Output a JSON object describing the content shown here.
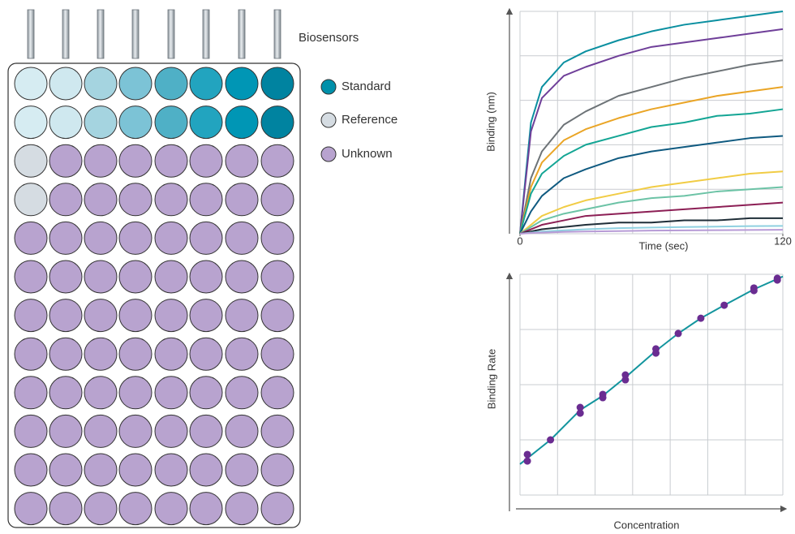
{
  "biosensors_label": "Biosensors",
  "legend": [
    "Standard",
    "Reference",
    "Unknown"
  ],
  "chart_data": [
    {
      "type": "line",
      "y_label": "Binding (nm)",
      "x_label": "Time (sec)",
      "x": [
        0,
        5,
        10,
        20,
        30,
        45,
        60,
        75,
        90,
        105,
        120
      ],
      "xlim": [
        0,
        120
      ],
      "xticks": [
        0,
        120
      ],
      "ylim": [
        0,
        100
      ],
      "grid": true,
      "series": [
        {
          "color": "#0a8fa0",
          "values": [
            0,
            50,
            66,
            77,
            82,
            87,
            91,
            94,
            96,
            98,
            100
          ]
        },
        {
          "color": "#6f3f99",
          "values": [
            0,
            46,
            61,
            71,
            75,
            80,
            84,
            86,
            88,
            90,
            92
          ]
        },
        {
          "color": "#6d7377",
          "values": [
            0,
            25,
            37,
            49,
            55,
            62,
            66,
            70,
            73,
            76,
            78
          ]
        },
        {
          "color": "#eaa526",
          "values": [
            0,
            21,
            32,
            42,
            47,
            52,
            56,
            59,
            62,
            64,
            66
          ]
        },
        {
          "color": "#13a594",
          "values": [
            0,
            18,
            27,
            35,
            40,
            44,
            48,
            50,
            53,
            54,
            56
          ]
        },
        {
          "color": "#0f5a80",
          "values": [
            0,
            10,
            17,
            25,
            29,
            34,
            37,
            39,
            41,
            43,
            44
          ]
        },
        {
          "color": "#f1cc45",
          "values": [
            0,
            4,
            8,
            12,
            15,
            18,
            21,
            23,
            25,
            27,
            28
          ]
        },
        {
          "color": "#6cc3a6",
          "values": [
            0,
            3,
            6,
            9,
            11,
            14,
            16,
            17,
            19,
            20,
            21
          ]
        },
        {
          "color": "#8c1f55",
          "values": [
            0,
            2,
            4,
            6,
            8,
            9,
            10,
            11,
            12,
            13,
            14
          ]
        },
        {
          "color": "#1f2e38",
          "values": [
            0,
            1,
            2,
            3,
            4,
            5,
            5,
            6,
            6,
            7,
            7
          ]
        },
        {
          "color": "#8fd0e0",
          "values": [
            0,
            0.5,
            1,
            1.5,
            2,
            2.5,
            2.8,
            3,
            3.2,
            3.4,
            3.5
          ]
        },
        {
          "color": "#b79bd6",
          "values": [
            0,
            0.3,
            0.5,
            0.8,
            1,
            1.2,
            1.4,
            1.5,
            1.6,
            1.7,
            1.8
          ]
        }
      ]
    },
    {
      "type": "scatter",
      "y_label": "Binding Rate",
      "x_label": "Concentration",
      "xlim": [
        0,
        100
      ],
      "ylim": [
        0,
        100
      ],
      "grid": true,
      "series": [
        {
          "type": "line",
          "color": "#13959e",
          "x": [
            0,
            11.6,
            22.9,
            31.5,
            40.1,
            51.7,
            60.2,
            68.8,
            77.7,
            89,
            100
          ],
          "values": [
            14,
            25,
            38.5,
            45,
            53.3,
            65.3,
            73.2,
            80.1,
            86,
            93.2,
            99
          ]
        },
        {
          "type": "scatter",
          "color": "#6a2c91",
          "x": [
            2.8,
            2.8,
            11.6,
            22.9,
            22.9,
            31.5,
            31.5,
            40.1,
            40.1,
            51.7,
            51.7,
            60.2,
            68.8,
            77.7,
            89,
            89,
            97.9,
            97.9
          ],
          "values": [
            18.4,
            15.4,
            25,
            39.7,
            37.1,
            45.6,
            44.1,
            54.4,
            52.2,
            66.2,
            64.3,
            73.2,
            80.1,
            86,
            93.8,
            92.6,
            98.2,
            97.4
          ]
        }
      ]
    }
  ]
}
